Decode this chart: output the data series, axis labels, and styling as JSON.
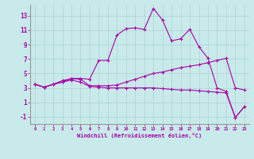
{
  "xlabel": "Windchill (Refroidissement éolien,°C)",
  "background_color": "#c8eaea",
  "grid_color": "#aad4d4",
  "line_color": "#aa00aa",
  "xlim": [
    -0.5,
    23.5
  ],
  "ylim": [
    -2,
    14.5
  ],
  "x_ticks": [
    0,
    1,
    2,
    3,
    4,
    5,
    6,
    7,
    8,
    9,
    10,
    11,
    12,
    13,
    14,
    15,
    16,
    17,
    18,
    19,
    20,
    21,
    22,
    23
  ],
  "y_ticks": [
    -1,
    1,
    3,
    5,
    7,
    9,
    11,
    13
  ],
  "line1_x": [
    0,
    1,
    2,
    3,
    4,
    5,
    6,
    7,
    8,
    9,
    10,
    11,
    12,
    13,
    14,
    15,
    16,
    17,
    18,
    19,
    20,
    21,
    22,
    23
  ],
  "line1_y": [
    3.5,
    3.1,
    3.5,
    4.0,
    4.3,
    4.3,
    4.2,
    6.8,
    6.8,
    10.3,
    11.2,
    11.3,
    11.1,
    14.0,
    12.4,
    9.5,
    9.8,
    11.1,
    8.7,
    7.1,
    3.0,
    2.5,
    -1.1,
    0.4
  ],
  "line2_x": [
    0,
    1,
    2,
    3,
    4,
    5,
    6,
    7,
    8,
    9,
    10,
    11,
    12,
    13,
    14,
    15,
    16,
    17,
    18,
    19,
    20,
    21,
    22,
    23
  ],
  "line2_y": [
    3.5,
    3.1,
    3.5,
    3.8,
    4.3,
    4.2,
    3.3,
    3.3,
    3.3,
    3.4,
    3.8,
    4.2,
    4.6,
    5.0,
    5.2,
    5.5,
    5.8,
    6.0,
    6.2,
    6.5,
    6.8,
    7.1,
    3.0,
    2.7
  ],
  "line3_x": [
    0,
    1,
    2,
    3,
    4,
    5,
    6,
    7,
    8,
    9,
    10,
    11,
    12,
    13,
    14,
    15,
    16,
    17,
    18,
    19,
    20,
    21,
    22,
    23
  ],
  "line3_y": [
    3.5,
    3.1,
    3.5,
    3.8,
    4.1,
    3.8,
    3.2,
    3.1,
    3.0,
    3.0,
    3.0,
    3.0,
    3.0,
    3.0,
    2.9,
    2.8,
    2.7,
    2.7,
    2.6,
    2.5,
    2.4,
    2.3,
    -1.1,
    0.4
  ]
}
